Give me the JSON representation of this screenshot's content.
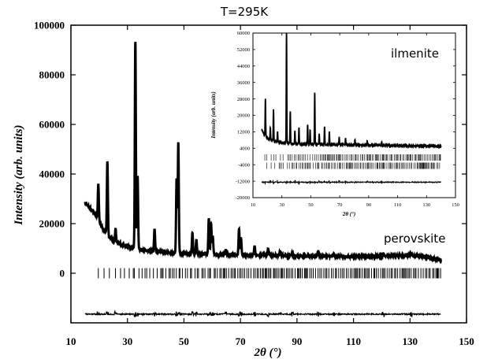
{
  "chart_data": [
    {
      "type": "line",
      "title": "T=295K",
      "xlabel": "2θ (°)",
      "ylabel": "Intensity (arb. units)",
      "annotation": "perovskite",
      "xlim": [
        10,
        150
      ],
      "ylim": [
        -20000,
        100000
      ],
      "x_ticks": [
        "10",
        "30",
        "50",
        "70",
        "90",
        "110",
        "130",
        "150"
      ],
      "y_ticks": [
        "0",
        "20000",
        "40000",
        "60000",
        "80000",
        "100000"
      ],
      "background_points": [
        [
          15,
          28500
        ],
        [
          17,
          26000
        ],
        [
          19,
          23000
        ],
        [
          21,
          18500
        ],
        [
          23,
          15500
        ],
        [
          25,
          13000
        ],
        [
          28,
          11500
        ],
        [
          31,
          10500
        ],
        [
          35,
          9500
        ],
        [
          40,
          8800
        ],
        [
          45,
          8200
        ],
        [
          50,
          7900
        ],
        [
          60,
          7600
        ],
        [
          70,
          7300
        ],
        [
          80,
          7300
        ],
        [
          90,
          6900
        ],
        [
          100,
          6900
        ],
        [
          110,
          6700
        ],
        [
          120,
          6900
        ],
        [
          130,
          7200
        ],
        [
          135,
          6800
        ],
        [
          141,
          5200
        ]
      ],
      "peaks": [
        [
          19.7,
          36000
        ],
        [
          22.9,
          45000
        ],
        [
          25.8,
          18000
        ],
        [
          32.8,
          93500
        ],
        [
          33.6,
          39000
        ],
        [
          39.6,
          18000
        ],
        [
          47.4,
          38000
        ],
        [
          48.0,
          52500
        ],
        [
          53.0,
          16500
        ],
        [
          54.4,
          13500
        ],
        [
          58.8,
          22000
        ],
        [
          59.6,
          20000
        ],
        [
          60.2,
          15000
        ],
        [
          64.8,
          9500
        ],
        [
          69.5,
          18000
        ],
        [
          70.2,
          14000
        ],
        [
          75.0,
          11000
        ],
        [
          79.8,
          10000
        ],
        [
          84.0,
          9000
        ],
        [
          88.3,
          8500
        ],
        [
          97.5,
          9000
        ],
        [
          103.0,
          8000
        ],
        [
          120.5,
          7800
        ],
        [
          130.3,
          8000
        ]
      ],
      "bragg_marks_y": 0,
      "residual_y": -16500
    },
    {
      "type": "line",
      "annotation": "ilmenite",
      "xlabel": "2θ (°)",
      "ylabel": "Intensity (arb. units)",
      "xlim": [
        10,
        150
      ],
      "ylim": [
        -20000,
        60000
      ],
      "x_ticks": [
        "10",
        "30",
        "50",
        "70",
        "90",
        "110",
        "130",
        "150"
      ],
      "y_ticks": [
        "-20000",
        "-12000",
        "-4000",
        "4000",
        "12000",
        "20000",
        "28000",
        "36000",
        "44000",
        "52000",
        "60000"
      ],
      "background_points": [
        [
          16,
          13000
        ],
        [
          18,
          10500
        ],
        [
          20,
          9000
        ],
        [
          24,
          7500
        ],
        [
          30,
          6600
        ],
        [
          40,
          6100
        ],
        [
          60,
          5800
        ],
        [
          80,
          5600
        ],
        [
          100,
          5400
        ],
        [
          120,
          5200
        ],
        [
          140,
          5000
        ]
      ],
      "peaks": [
        [
          18.6,
          28000
        ],
        [
          22.0,
          14000
        ],
        [
          24.2,
          23000
        ],
        [
          27.0,
          12000
        ],
        [
          33.2,
          60000
        ],
        [
          35.8,
          22000
        ],
        [
          39.0,
          12500
        ],
        [
          41.8,
          14000
        ],
        [
          47.8,
          15500
        ],
        [
          49.5,
          13000
        ],
        [
          52.7,
          31000
        ],
        [
          55.8,
          11000
        ],
        [
          59.5,
          14500
        ],
        [
          62.8,
          12000
        ],
        [
          69.6,
          9500
        ],
        [
          74.0,
          8800
        ],
        [
          80.5,
          8200
        ],
        [
          89.0,
          7500
        ],
        [
          99.0,
          7000
        ]
      ],
      "bragg_marks_y": [
        -500,
        -4500
      ],
      "residual_y": -12500
    }
  ]
}
